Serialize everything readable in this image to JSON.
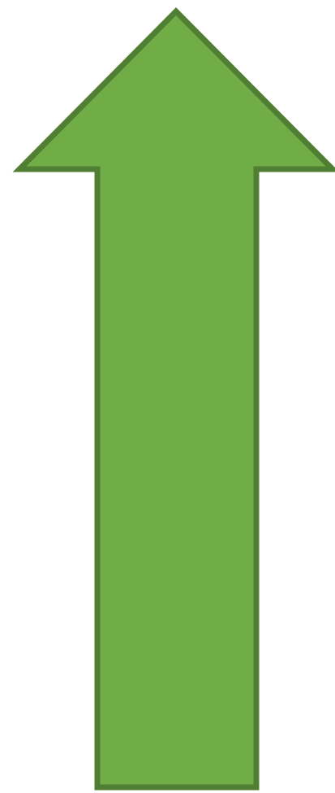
{
  "shape": {
    "icon": "arrow-up-icon",
    "fill_color": "#70AD47",
    "stroke_color": "#507E32"
  }
}
